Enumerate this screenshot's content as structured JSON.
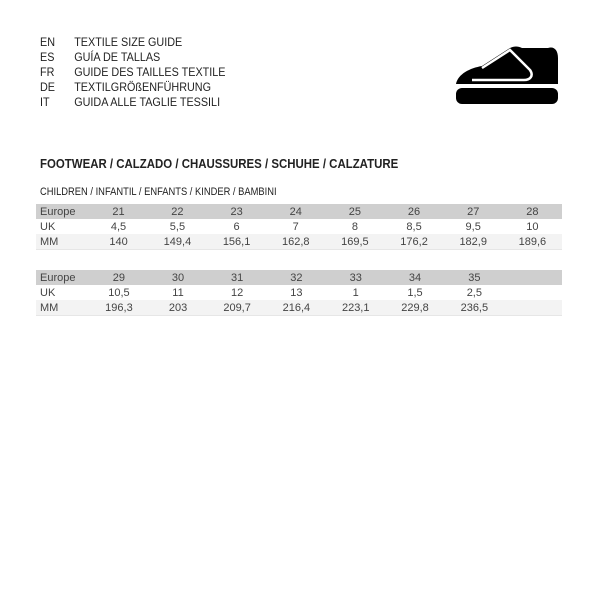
{
  "languages": [
    {
      "code": "EN",
      "text": "TEXTILE SIZE GUIDE"
    },
    {
      "code": "ES",
      "text": "GUÍA DE TALLAS"
    },
    {
      "code": "FR",
      "text": "GUIDE DES TAILLES TEXTILE"
    },
    {
      "code": "DE",
      "text": "TEXTILGRÖßENFÜHRUNG"
    },
    {
      "code": "IT",
      "text": "GUIDA ALLE TAGLIE TESSILI"
    }
  ],
  "icon": "shoe-icon",
  "section_title": "FOOTWEAR / CALZADO / CHAUSSURES / SCHUHE / CALZATURE",
  "subsection_title": "CHILDREN / INFANTIL / ENFANTS / KINDER / BAMBINI",
  "tables": [
    {
      "rows": [
        {
          "label": "Europe",
          "values": [
            "21",
            "22",
            "23",
            "24",
            "25",
            "26",
            "27",
            "28"
          ]
        },
        {
          "label": "UK",
          "values": [
            "4,5",
            "5,5",
            "6",
            "7",
            "8",
            "8,5",
            "9,5",
            "10"
          ]
        },
        {
          "label": "MM",
          "values": [
            "140",
            "149,4",
            "156,1",
            "162,8",
            "169,5",
            "176,2",
            "182,9",
            "189,6"
          ]
        }
      ]
    },
    {
      "rows": [
        {
          "label": "Europe",
          "values": [
            "29",
            "30",
            "31",
            "32",
            "33",
            "34",
            "35",
            ""
          ]
        },
        {
          "label": "UK",
          "values": [
            "10,5",
            "11",
            "12",
            "13",
            "1",
            "1,5",
            "2,5",
            ""
          ]
        },
        {
          "label": "MM",
          "values": [
            "196,3",
            "203",
            "209,7",
            "216,4",
            "223,1",
            "229,8",
            "236,5",
            ""
          ]
        }
      ]
    }
  ]
}
